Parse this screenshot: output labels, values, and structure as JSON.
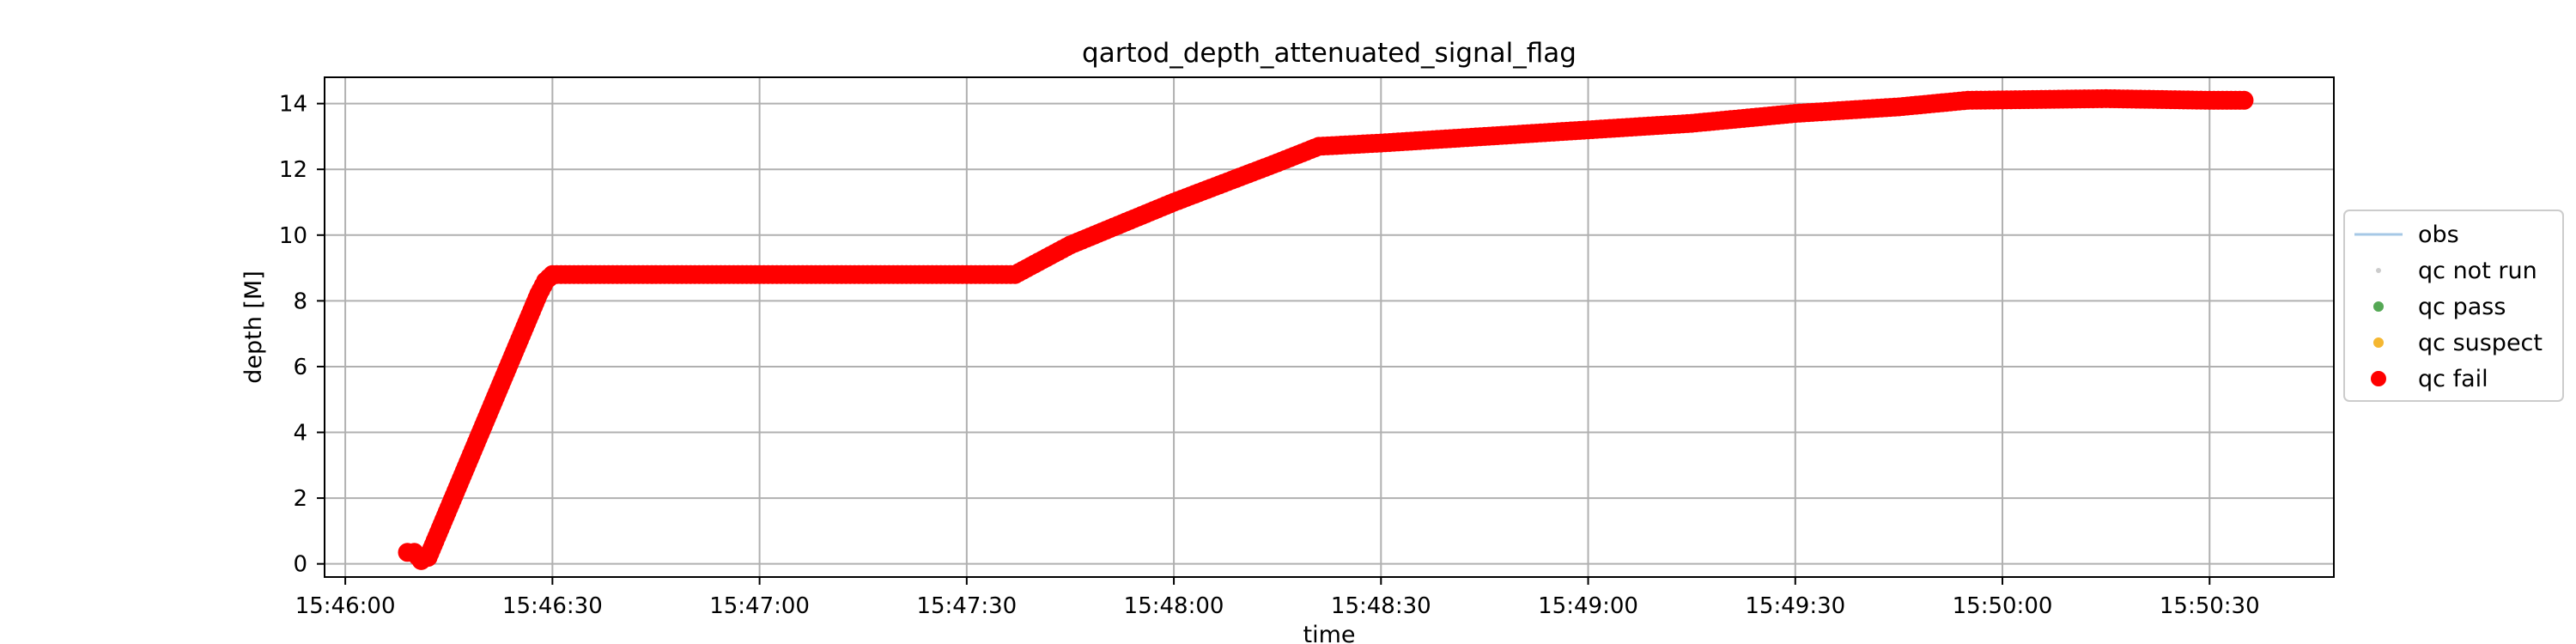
{
  "chart_data": {
    "type": "scatter",
    "title": "qartod_depth_attenuated_signal_flag",
    "xlabel": "time",
    "ylabel": "depth [M]",
    "x_ticks": [
      "15:46:00",
      "15:46:30",
      "15:47:00",
      "15:47:30",
      "15:48:00",
      "15:48:30",
      "15:49:00",
      "15:49:30",
      "15:50:00",
      "15:50:30"
    ],
    "y_ticks": [
      0,
      2,
      4,
      6,
      8,
      10,
      12,
      14
    ],
    "xlim": [
      "15:45:57",
      "15:50:48"
    ],
    "ylim": [
      -0.4,
      14.8
    ],
    "grid": true,
    "legend_placement": "right",
    "legend": [
      {
        "name": "obs",
        "marker": "line",
        "color": "#a6c8e6"
      },
      {
        "name": "qc not run",
        "marker": "dot-small",
        "color": "#cccccc"
      },
      {
        "name": "qc pass",
        "marker": "dot-medium",
        "color": "#55a855"
      },
      {
        "name": "qc suspect",
        "marker": "dot-medium",
        "color": "#f5b731"
      },
      {
        "name": "qc fail",
        "marker": "dot-large",
        "color": "#ff0000"
      }
    ],
    "series": [
      {
        "name": "qc fail",
        "color": "#ff0000",
        "points": [
          [
            "15:46:09",
            0.35
          ],
          [
            "15:46:10",
            0.35
          ],
          [
            "15:46:11",
            0.1
          ],
          [
            "15:46:12",
            0.2
          ],
          [
            "15:46:13",
            0.7
          ],
          [
            "15:46:14",
            1.2
          ],
          [
            "15:46:15",
            1.7
          ],
          [
            "15:46:16",
            2.2
          ],
          [
            "15:46:17",
            2.7
          ],
          [
            "15:46:18",
            3.2
          ],
          [
            "15:46:19",
            3.7
          ],
          [
            "15:46:20",
            4.2
          ],
          [
            "15:46:21",
            4.7
          ],
          [
            "15:46:22",
            5.2
          ],
          [
            "15:46:23",
            5.7
          ],
          [
            "15:46:24",
            6.2
          ],
          [
            "15:46:25",
            6.7
          ],
          [
            "15:46:26",
            7.2
          ],
          [
            "15:46:27",
            7.7
          ],
          [
            "15:46:28",
            8.2
          ],
          [
            "15:46:29",
            8.6
          ],
          [
            "15:46:30",
            8.8
          ],
          [
            "15:47:30",
            8.8
          ],
          [
            "15:47:37",
            8.8
          ],
          [
            "15:47:45",
            9.7
          ],
          [
            "15:48:00",
            11.0
          ],
          [
            "15:48:15",
            12.2
          ],
          [
            "15:48:21",
            12.7
          ],
          [
            "15:48:30",
            12.8
          ],
          [
            "15:48:45",
            13.0
          ],
          [
            "15:49:00",
            13.2
          ],
          [
            "15:49:15",
            13.4
          ],
          [
            "15:49:30",
            13.7
          ],
          [
            "15:49:45",
            13.9
          ],
          [
            "15:49:55",
            14.1
          ],
          [
            "15:50:15",
            14.15
          ],
          [
            "15:50:30",
            14.1
          ],
          [
            "15:50:35",
            14.1
          ]
        ]
      }
    ]
  }
}
